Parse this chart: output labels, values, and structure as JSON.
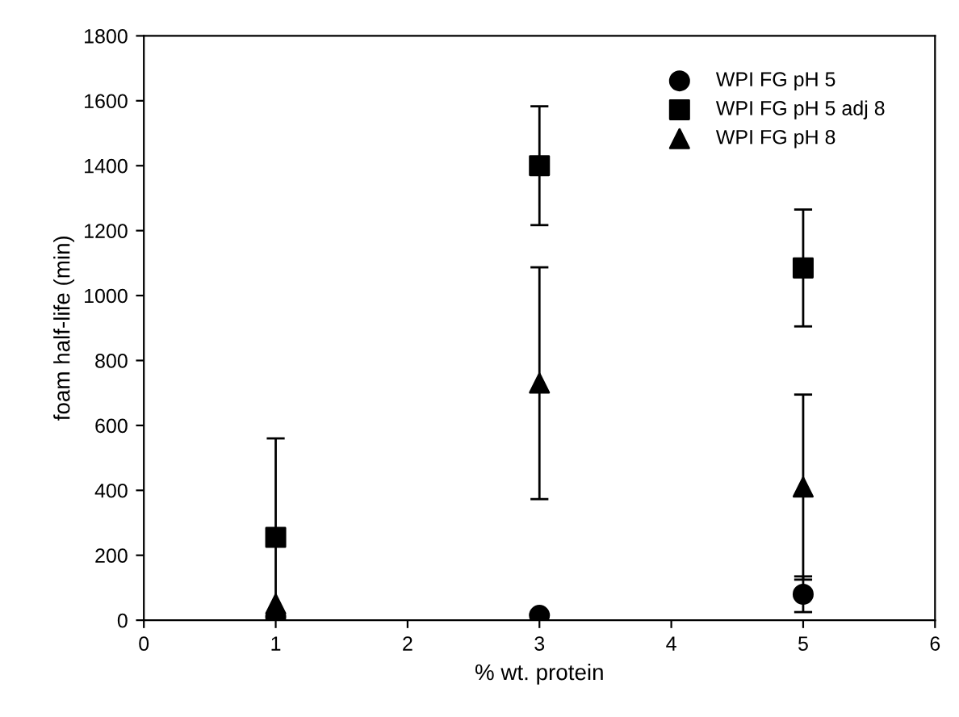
{
  "chart_data": {
    "type": "scatter",
    "xlabel": "% wt. protein",
    "ylabel": "foam half-life (min)",
    "xlim": [
      0,
      6
    ],
    "xticks": [
      0,
      1,
      2,
      3,
      4,
      5,
      6
    ],
    "ylim": [
      0,
      1800
    ],
    "yticks": [
      0,
      200,
      400,
      600,
      800,
      1000,
      1200,
      1400,
      1600,
      1800
    ],
    "x": [
      1,
      3,
      5
    ],
    "legend": "top right",
    "grid": false,
    "series": [
      {
        "name": "WPI FG pH 5",
        "color": "#000000",
        "marker": "circle",
        "values": [
          10,
          15,
          80
        ],
        "errors": [
          null,
          null,
          55
        ]
      },
      {
        "name": "WPI FG pH 5 adj 8",
        "color": "#000000",
        "marker": "square",
        "values": [
          255,
          1400,
          1085
        ],
        "errors": [
          305,
          183,
          180
        ]
      },
      {
        "name": "WPI FG pH 8",
        "color": "#000000",
        "marker": "triangle",
        "values": [
          50,
          730,
          410
        ],
        "errors": [
          null,
          357,
          285
        ]
      }
    ]
  }
}
